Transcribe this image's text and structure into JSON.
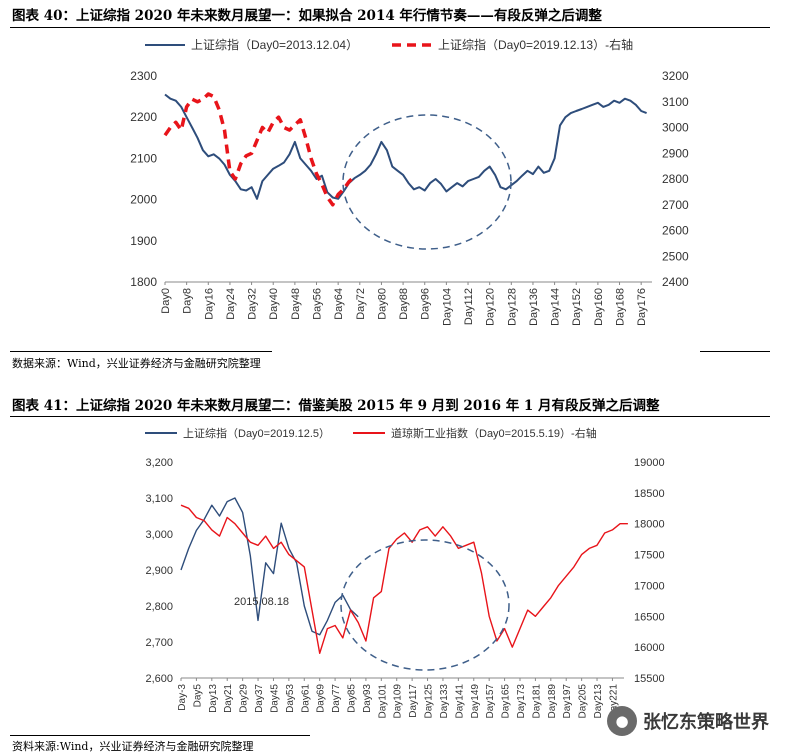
{
  "figure1": {
    "caption": "图表 40：上证综指 2020 年未来数月展望一：如果拟合 2014 年行情节奏——有段反弹之后调整",
    "source": "数据来源：Wind，兴业证券经济与金融研究院整理"
  },
  "figure2": {
    "caption": "图表 41：上证综指 2020 年未来数月展望二：借鉴美股 2015 年 9 月到 2016 年 1 月有段反弹之后调整",
    "source": "资料来源:Wind，兴业证券经济与金融研究院整理",
    "annotation": "2015.08.18"
  },
  "watermark": {
    "text": "张忆东策略世界",
    "icon": "wechat-icon"
  },
  "chart_data": [
    {
      "type": "line",
      "legend_position": "top",
      "grid": false,
      "colors": {
        "primary": "#2e4d7b",
        "secondary": "#e8141a"
      },
      "x_categories": [
        "Day0",
        "Day8",
        "Day16",
        "Day24",
        "Day32",
        "Day40",
        "Day48",
        "Day56",
        "Day64",
        "Day72",
        "Day80",
        "Day88",
        "Day96",
        "Day104",
        "Day112",
        "Day120",
        "Day128",
        "Day136",
        "Day144",
        "Day152",
        "Day160",
        "Day168",
        "Day176"
      ],
      "ylim_left": [
        1800,
        2300
      ],
      "yticks_left": [
        "1800",
        "1900",
        "2000",
        "2100",
        "2200",
        "2300"
      ],
      "ylim_right": [
        2400,
        3200
      ],
      "yticks_right": [
        "2400",
        "2500",
        "2600",
        "2700",
        "2800",
        "2900",
        "3000",
        "3100",
        "3200"
      ],
      "series": [
        {
          "name": "上证综指（Day0=2013.12.04）",
          "axis": "left",
          "style": "solid",
          "x": [
            0,
            2,
            4,
            6,
            8,
            10,
            12,
            14,
            16,
            18,
            20,
            22,
            24,
            26,
            28,
            30,
            32,
            34,
            36,
            38,
            40,
            42,
            44,
            46,
            48,
            50,
            52,
            54,
            56,
            58,
            60,
            62,
            64,
            66,
            68,
            70,
            72,
            74,
            76,
            78,
            80,
            82,
            84,
            86,
            88,
            90,
            92,
            94,
            96,
            98,
            100,
            102,
            104,
            106,
            108,
            110,
            112,
            114,
            116,
            118,
            120,
            122,
            124,
            126,
            128,
            130,
            132,
            134,
            136,
            138,
            140,
            142,
            144,
            146,
            148,
            150,
            152,
            154,
            156,
            158,
            160,
            162,
            164,
            166,
            168,
            170,
            172,
            174,
            176,
            178
          ],
          "y": [
            2255,
            2245,
            2240,
            2225,
            2200,
            2175,
            2150,
            2120,
            2105,
            2110,
            2100,
            2085,
            2060,
            2045,
            2025,
            2022,
            2030,
            2002,
            2045,
            2060,
            2075,
            2082,
            2090,
            2110,
            2140,
            2100,
            2085,
            2070,
            2050,
            2058,
            2018,
            2005,
            2002,
            2020,
            2040,
            2052,
            2060,
            2070,
            2085,
            2110,
            2140,
            2120,
            2080,
            2070,
            2060,
            2040,
            2025,
            2030,
            2022,
            2040,
            2050,
            2038,
            2020,
            2030,
            2040,
            2032,
            2045,
            2050,
            2055,
            2070,
            2080,
            2060,
            2030,
            2025,
            2035,
            2045,
            2058,
            2070,
            2062,
            2080,
            2065,
            2070,
            2100,
            2180,
            2200,
            2210,
            2215,
            2220,
            2225,
            2230,
            2235,
            2225,
            2230,
            2240,
            2235,
            2245,
            2240,
            2230,
            2215,
            2210
          ]
        },
        {
          "name": "上证综指（Day0=2019.12.13）-右轴",
          "axis": "right",
          "style": "dashed",
          "x": [
            0,
            2,
            4,
            6,
            8,
            10,
            12,
            14,
            16,
            18,
            20,
            22,
            24,
            26,
            28,
            30,
            32,
            34,
            36,
            38,
            40,
            42,
            44,
            46,
            48,
            50,
            52,
            54,
            56,
            58,
            60,
            62,
            64,
            66,
            68,
            70
          ],
          "y": [
            2970,
            3000,
            3020,
            2990,
            3080,
            3110,
            3100,
            3110,
            3130,
            3120,
            3070,
            2990,
            2830,
            2800,
            2860,
            2890,
            2900,
            2950,
            3000,
            2980,
            3020,
            3040,
            3000,
            2990,
            3010,
            3030,
            2960,
            2880,
            2820,
            2780,
            2730,
            2700,
            2740,
            2760,
            2790,
            2810
          ]
        }
      ]
    },
    {
      "type": "line",
      "legend_position": "top",
      "grid": false,
      "annotation": "2015.08.18",
      "colors": {
        "primary": "#2e4d7b",
        "secondary": "#e8141a"
      },
      "x_categories": [
        "Day-3",
        "Day5",
        "Day13",
        "Day21",
        "Day29",
        "Day37",
        "Day45",
        "Day53",
        "Day61",
        "Day69",
        "Day77",
        "Day85",
        "Day93",
        "Day101",
        "Day109",
        "Day117",
        "Day125",
        "Day133",
        "Day141",
        "Day149",
        "Day157",
        "Day165",
        "Day173",
        "Day181",
        "Day189",
        "Day197",
        "Day205",
        "Day213",
        "Day221"
      ],
      "ylim_left": [
        2600,
        3200
      ],
      "yticks_left": [
        "2,600",
        "2,700",
        "2,800",
        "2,900",
        "3,000",
        "3,100",
        "3,200"
      ],
      "ylim_right": [
        15500,
        19000
      ],
      "yticks_right": [
        "15500",
        "16000",
        "16500",
        "17000",
        "17500",
        "18000",
        "18500",
        "19000"
      ],
      "series": [
        {
          "name": "上证综指（Day0=2019.12.5）",
          "axis": "left",
          "style": "solid",
          "x": [
            -3,
            1,
            5,
            9,
            13,
            17,
            21,
            25,
            29,
            33,
            37,
            41,
            45,
            49,
            53,
            57,
            61,
            65,
            69,
            73,
            77,
            81,
            85,
            89
          ],
          "y": [
            2900,
            2960,
            3010,
            3040,
            3080,
            3050,
            3090,
            3100,
            3060,
            2940,
            2760,
            2920,
            2890,
            3030,
            2960,
            2920,
            2800,
            2730,
            2720,
            2760,
            2810,
            2830,
            2790,
            2770
          ]
        },
        {
          "name": "道琼斯工业指数（Day0=2015.5.19）-右轴",
          "axis": "right",
          "style": "solid",
          "x": [
            -3,
            1,
            5,
            9,
            13,
            17,
            21,
            25,
            29,
            33,
            37,
            41,
            45,
            49,
            53,
            57,
            61,
            65,
            69,
            73,
            77,
            81,
            85,
            89,
            93,
            97,
            101,
            105,
            109,
            113,
            117,
            121,
            125,
            129,
            133,
            137,
            141,
            145,
            149,
            153,
            157,
            161,
            165,
            169,
            173,
            177,
            181,
            185,
            189,
            193,
            197,
            201,
            205,
            209,
            213,
            217,
            221,
            225,
            229
          ],
          "y": [
            18300,
            18250,
            18100,
            18050,
            17900,
            17800,
            18100,
            18000,
            17850,
            17700,
            17650,
            17800,
            17600,
            17700,
            17500,
            17400,
            17300,
            16600,
            15900,
            16300,
            16350,
            16150,
            16600,
            16400,
            16100,
            16800,
            16900,
            17600,
            17750,
            17850,
            17700,
            17900,
            17950,
            17800,
            17950,
            17800,
            17600,
            17650,
            17700,
            17200,
            16500,
            16100,
            16300,
            16000,
            16300,
            16600,
            16500,
            16650,
            16800,
            17000,
            17150,
            17300,
            17500,
            17600,
            17650,
            17850,
            17900,
            18000,
            18000
          ]
        }
      ]
    }
  ]
}
